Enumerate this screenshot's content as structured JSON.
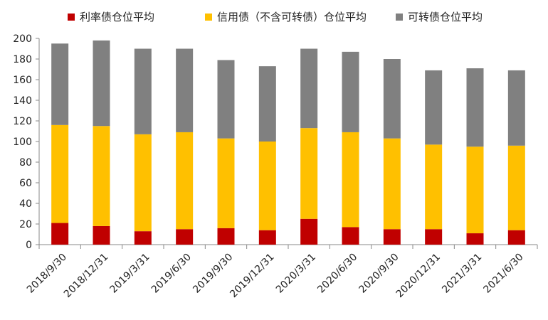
{
  "chart_data": {
    "type": "bar",
    "stacked": true,
    "title": "",
    "xlabel": "",
    "ylabel": "",
    "ylim": [
      0,
      200
    ],
    "yticks": [
      0,
      20,
      40,
      60,
      80,
      100,
      120,
      140,
      160,
      180,
      200
    ],
    "grid": false,
    "legend_position": "top",
    "categories": [
      "2018/9/30",
      "2018/12/31",
      "2019/3/31",
      "2019/6/30",
      "2019/9/30",
      "2019/12/31",
      "2020/3/31",
      "2020/6/30",
      "2020/9/30",
      "2020/12/31",
      "2021/3/31",
      "2021/6/30"
    ],
    "series": [
      {
        "name": "利率债仓位平均",
        "color": "#c00000",
        "values": [
          21,
          18,
          13,
          15,
          16,
          14,
          25,
          17,
          15,
          15,
          11,
          14
        ]
      },
      {
        "name": "信用债（不含可转债）仓位平均",
        "color": "#ffc000",
        "values": [
          95,
          97,
          94,
          94,
          87,
          86,
          88,
          92,
          88,
          82,
          84,
          82
        ]
      },
      {
        "name": "可转债仓位平均",
        "color": "#808080",
        "values": [
          79,
          83,
          83,
          81,
          76,
          73,
          77,
          78,
          77,
          72,
          76,
          73
        ]
      }
    ]
  }
}
